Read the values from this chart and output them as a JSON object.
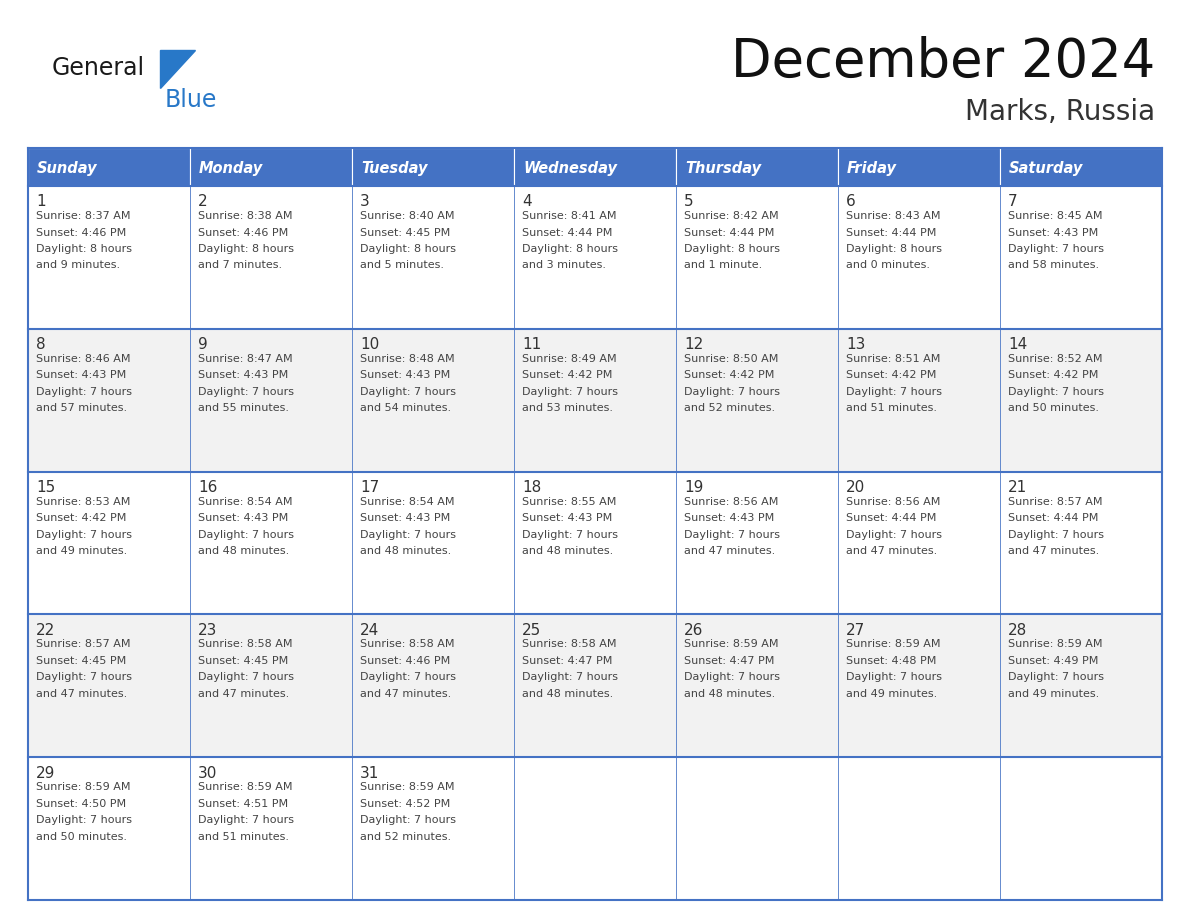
{
  "title": "December 2024",
  "subtitle": "Marks, Russia",
  "header_bg": "#4472C4",
  "header_text_color": "#FFFFFF",
  "day_names": [
    "Sunday",
    "Monday",
    "Tuesday",
    "Wednesday",
    "Thursday",
    "Friday",
    "Saturday"
  ],
  "odd_row_bg": "#FFFFFF",
  "even_row_bg": "#F2F2F2",
  "cell_text_color": "#444444",
  "day_num_color": "#333333",
  "grid_color": "#4472C4",
  "border_color": "#4472C4",
  "background_color": "#FFFFFF",
  "logo_general_color": "#1a1a1a",
  "logo_blue_color": "#2878C8",
  "logo_triangle_color": "#2878C8",
  "title_color": "#111111",
  "subtitle_color": "#333333",
  "weeks": [
    [
      {
        "day": 1,
        "sunrise": "8:37 AM",
        "sunset": "4:46 PM",
        "daylight_hours": 8,
        "daylight_minutes": 9,
        "singular": false
      },
      {
        "day": 2,
        "sunrise": "8:38 AM",
        "sunset": "4:46 PM",
        "daylight_hours": 8,
        "daylight_minutes": 7,
        "singular": false
      },
      {
        "day": 3,
        "sunrise": "8:40 AM",
        "sunset": "4:45 PM",
        "daylight_hours": 8,
        "daylight_minutes": 5,
        "singular": false
      },
      {
        "day": 4,
        "sunrise": "8:41 AM",
        "sunset": "4:44 PM",
        "daylight_hours": 8,
        "daylight_minutes": 3,
        "singular": false
      },
      {
        "day": 5,
        "sunrise": "8:42 AM",
        "sunset": "4:44 PM",
        "daylight_hours": 8,
        "daylight_minutes": 1,
        "singular": true
      },
      {
        "day": 6,
        "sunrise": "8:43 AM",
        "sunset": "4:44 PM",
        "daylight_hours": 8,
        "daylight_minutes": 0,
        "singular": false
      },
      {
        "day": 7,
        "sunrise": "8:45 AM",
        "sunset": "4:43 PM",
        "daylight_hours": 7,
        "daylight_minutes": 58,
        "singular": false
      }
    ],
    [
      {
        "day": 8,
        "sunrise": "8:46 AM",
        "sunset": "4:43 PM",
        "daylight_hours": 7,
        "daylight_minutes": 57,
        "singular": false
      },
      {
        "day": 9,
        "sunrise": "8:47 AM",
        "sunset": "4:43 PM",
        "daylight_hours": 7,
        "daylight_minutes": 55,
        "singular": false
      },
      {
        "day": 10,
        "sunrise": "8:48 AM",
        "sunset": "4:43 PM",
        "daylight_hours": 7,
        "daylight_minutes": 54,
        "singular": false
      },
      {
        "day": 11,
        "sunrise": "8:49 AM",
        "sunset": "4:42 PM",
        "daylight_hours": 7,
        "daylight_minutes": 53,
        "singular": false
      },
      {
        "day": 12,
        "sunrise": "8:50 AM",
        "sunset": "4:42 PM",
        "daylight_hours": 7,
        "daylight_minutes": 52,
        "singular": false
      },
      {
        "day": 13,
        "sunrise": "8:51 AM",
        "sunset": "4:42 PM",
        "daylight_hours": 7,
        "daylight_minutes": 51,
        "singular": false
      },
      {
        "day": 14,
        "sunrise": "8:52 AM",
        "sunset": "4:42 PM",
        "daylight_hours": 7,
        "daylight_minutes": 50,
        "singular": false
      }
    ],
    [
      {
        "day": 15,
        "sunrise": "8:53 AM",
        "sunset": "4:42 PM",
        "daylight_hours": 7,
        "daylight_minutes": 49,
        "singular": false
      },
      {
        "day": 16,
        "sunrise": "8:54 AM",
        "sunset": "4:43 PM",
        "daylight_hours": 7,
        "daylight_minutes": 48,
        "singular": false
      },
      {
        "day": 17,
        "sunrise": "8:54 AM",
        "sunset": "4:43 PM",
        "daylight_hours": 7,
        "daylight_minutes": 48,
        "singular": false
      },
      {
        "day": 18,
        "sunrise": "8:55 AM",
        "sunset": "4:43 PM",
        "daylight_hours": 7,
        "daylight_minutes": 48,
        "singular": false
      },
      {
        "day": 19,
        "sunrise": "8:56 AM",
        "sunset": "4:43 PM",
        "daylight_hours": 7,
        "daylight_minutes": 47,
        "singular": false
      },
      {
        "day": 20,
        "sunrise": "8:56 AM",
        "sunset": "4:44 PM",
        "daylight_hours": 7,
        "daylight_minutes": 47,
        "singular": false
      },
      {
        "day": 21,
        "sunrise": "8:57 AM",
        "sunset": "4:44 PM",
        "daylight_hours": 7,
        "daylight_minutes": 47,
        "singular": false
      }
    ],
    [
      {
        "day": 22,
        "sunrise": "8:57 AM",
        "sunset": "4:45 PM",
        "daylight_hours": 7,
        "daylight_minutes": 47,
        "singular": false
      },
      {
        "day": 23,
        "sunrise": "8:58 AM",
        "sunset": "4:45 PM",
        "daylight_hours": 7,
        "daylight_minutes": 47,
        "singular": false
      },
      {
        "day": 24,
        "sunrise": "8:58 AM",
        "sunset": "4:46 PM",
        "daylight_hours": 7,
        "daylight_minutes": 47,
        "singular": false
      },
      {
        "day": 25,
        "sunrise": "8:58 AM",
        "sunset": "4:47 PM",
        "daylight_hours": 7,
        "daylight_minutes": 48,
        "singular": false
      },
      {
        "day": 26,
        "sunrise": "8:59 AM",
        "sunset": "4:47 PM",
        "daylight_hours": 7,
        "daylight_minutes": 48,
        "singular": false
      },
      {
        "day": 27,
        "sunrise": "8:59 AM",
        "sunset": "4:48 PM",
        "daylight_hours": 7,
        "daylight_minutes": 49,
        "singular": false
      },
      {
        "day": 28,
        "sunrise": "8:59 AM",
        "sunset": "4:49 PM",
        "daylight_hours": 7,
        "daylight_minutes": 49,
        "singular": false
      }
    ],
    [
      {
        "day": 29,
        "sunrise": "8:59 AM",
        "sunset": "4:50 PM",
        "daylight_hours": 7,
        "daylight_minutes": 50,
        "singular": false
      },
      {
        "day": 30,
        "sunrise": "8:59 AM",
        "sunset": "4:51 PM",
        "daylight_hours": 7,
        "daylight_minutes": 51,
        "singular": false
      },
      {
        "day": 31,
        "sunrise": "8:59 AM",
        "sunset": "4:52 PM",
        "daylight_hours": 7,
        "daylight_minutes": 52,
        "singular": false
      },
      null,
      null,
      null,
      null
    ]
  ]
}
